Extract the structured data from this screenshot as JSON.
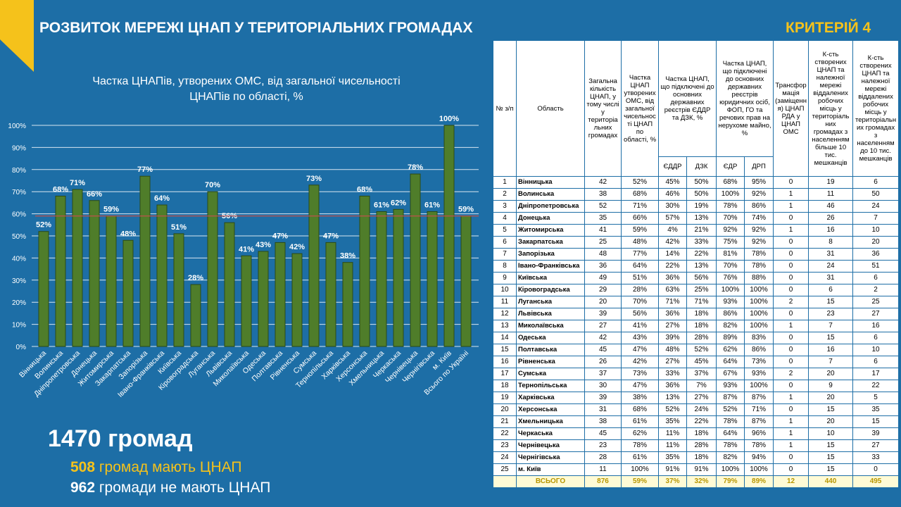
{
  "header": {
    "title": "РОЗВИТОК МЕРЕЖІ ЦНАП У ТЕРИТОРІАЛЬНИХ ГРОМАДАХ",
    "criterion": "КРИТЕРІЙ 4"
  },
  "chart_data": {
    "type": "bar",
    "title": [
      "Частка ЦНАПів, утворених ОМС, від загальної чисельності",
      "ЦНАПів по області, %"
    ],
    "categories": [
      "Вінницька",
      "Волинська",
      "Дніпропетровська",
      "Донецька",
      "Житомирська",
      "Закарпатська",
      "Запорізька",
      "Івано-Франківська",
      "Київська",
      "Кіровоградська",
      "Луганська",
      "Львівська",
      "Миколаївська",
      "Одеська",
      "Полтавська",
      "Рівненська",
      "Сумська",
      "Тернопільська",
      "Харківська",
      "Херсонська",
      "Хмельницька",
      "Черкаська",
      "Чернівецька",
      "Чернігівська",
      "м. Київ",
      "Всього по Україні"
    ],
    "values": [
      52,
      68,
      71,
      66,
      59,
      48,
      77,
      64,
      51,
      28,
      70,
      56,
      41,
      43,
      47,
      42,
      73,
      47,
      38,
      68,
      61,
      62,
      78,
      61,
      100,
      59
    ],
    "value_labels": [
      "52%",
      "68%",
      "71%",
      "66%",
      "59%",
      "48%",
      "77%",
      "64%",
      "51%",
      "28%",
      "70%",
      "56%",
      "41%",
      "43%",
      "47%",
      "42%",
      "73%",
      "47%",
      "38%",
      "68%",
      "61%",
      "62%",
      "78%",
      "61%",
      "100%",
      "59%"
    ],
    "color": "#4f7d2a",
    "reference_line": {
      "value": 59,
      "color": "#c0504d"
    },
    "ylim": [
      0,
      100
    ],
    "yticks": [
      {
        "value": 0,
        "label": "0%"
      },
      {
        "value": 10,
        "label": "10%"
      },
      {
        "value": 20,
        "label": "20%"
      },
      {
        "value": 30,
        "label": "30%"
      },
      {
        "value": 40,
        "label": "40%"
      },
      {
        "value": 50,
        "label": "50%"
      },
      {
        "value": 60,
        "label": "60%"
      },
      {
        "value": 70,
        "label": "70%"
      },
      {
        "value": 80,
        "label": "80%"
      },
      {
        "value": 90,
        "label": "90%"
      },
      {
        "value": 100,
        "label": "100%"
      }
    ],
    "grid": true
  },
  "summary": {
    "total": "1470 громад",
    "with_number": "508",
    "with_text": "громад мають ЦНАП",
    "without_number": "962",
    "without_text": "громади не мають ЦНАП"
  },
  "table": {
    "columns": [
      "№ з/п",
      "Область",
      "Загальна кількість ЦНАП, у тому числі у територіальних громадах",
      "Частка ЦНАП утворених ОМС, від загальної чисельності ЦНАП по області, %",
      "Частка ЦНАП, що підключені до основних державних реєстрів ЄДДР та ДЗК, %",
      "Частка ЦНАП, що підключені до основних державних реєстрів юридичних осіб, ФОП, ГО та речових прав на нерухоме майно, %",
      "Трансформація (заміщення) ЦНАП РДА у ЦНАП ОМС",
      "К-сть створених ЦНАП та належної мережі віддалених робочих місць у територіальних громадах з населенням більше 10 тис. мешканців",
      "К-сть створених ЦНАП та належної мережі віддалених робочих місць у територіальних громадах з населенням до 10 тис. мешканців"
    ],
    "subcolumns": [
      "ЄДДР",
      "ДЗК",
      "ЄДР",
      "ДРП"
    ],
    "rows": [
      [
        "1",
        "Вінницька",
        "42",
        "52%",
        "45%",
        "50%",
        "68%",
        "95%",
        "0",
        "19",
        "6"
      ],
      [
        "2",
        "Волинська",
        "38",
        "68%",
        "46%",
        "50%",
        "100%",
        "92%",
        "1",
        "11",
        "50"
      ],
      [
        "3",
        "Дніпропетровська",
        "52",
        "71%",
        "30%",
        "19%",
        "78%",
        "86%",
        "1",
        "46",
        "24"
      ],
      [
        "4",
        "Донецька",
        "35",
        "66%",
        "57%",
        "13%",
        "70%",
        "74%",
        "0",
        "26",
        "7"
      ],
      [
        "5",
        "Житомирська",
        "41",
        "59%",
        "4%",
        "21%",
        "92%",
        "92%",
        "1",
        "16",
        "10"
      ],
      [
        "6",
        "Закарпатська",
        "25",
        "48%",
        "42%",
        "33%",
        "75%",
        "92%",
        "0",
        "8",
        "20"
      ],
      [
        "7",
        "Запорізька",
        "48",
        "77%",
        "14%",
        "22%",
        "81%",
        "78%",
        "0",
        "31",
        "36"
      ],
      [
        "8",
        "Івано-Франківська",
        "36",
        "64%",
        "22%",
        "13%",
        "70%",
        "78%",
        "0",
        "24",
        "51"
      ],
      [
        "9",
        "Київська",
        "49",
        "51%",
        "36%",
        "56%",
        "76%",
        "88%",
        "0",
        "31",
        "6"
      ],
      [
        "10",
        "Кіровоградська",
        "29",
        "28%",
        "63%",
        "25%",
        "100%",
        "100%",
        "0",
        "6",
        "2"
      ],
      [
        "11",
        "Луганська",
        "20",
        "70%",
        "71%",
        "71%",
        "93%",
        "100%",
        "2",
        "15",
        "25"
      ],
      [
        "12",
        "Львівська",
        "39",
        "56%",
        "36%",
        "18%",
        "86%",
        "100%",
        "0",
        "23",
        "27"
      ],
      [
        "13",
        "Миколаївська",
        "27",
        "41%",
        "27%",
        "18%",
        "82%",
        "100%",
        "1",
        "7",
        "16"
      ],
      [
        "14",
        "Одеська",
        "42",
        "43%",
        "39%",
        "28%",
        "89%",
        "83%",
        "0",
        "15",
        "6"
      ],
      [
        "15",
        "Полтавська",
        "45",
        "47%",
        "48%",
        "52%",
        "62%",
        "86%",
        "0",
        "16",
        "10"
      ],
      [
        "16",
        "Рівненська",
        "26",
        "42%",
        "27%",
        "45%",
        "64%",
        "73%",
        "0",
        "7",
        "6"
      ],
      [
        "17",
        "Сумська",
        "37",
        "73%",
        "33%",
        "37%",
        "67%",
        "93%",
        "2",
        "20",
        "17"
      ],
      [
        "18",
        "Тернопільська",
        "30",
        "47%",
        "36%",
        "7%",
        "93%",
        "100%",
        "0",
        "9",
        "22"
      ],
      [
        "19",
        "Харківська",
        "39",
        "38%",
        "13%",
        "27%",
        "87%",
        "87%",
        "1",
        "20",
        "5"
      ],
      [
        "20",
        "Херсонська",
        "31",
        "68%",
        "52%",
        "24%",
        "52%",
        "71%",
        "0",
        "15",
        "35"
      ],
      [
        "21",
        "Хмельницька",
        "38",
        "61%",
        "35%",
        "22%",
        "78%",
        "87%",
        "1",
        "20",
        "15"
      ],
      [
        "22",
        "Черкаська",
        "45",
        "62%",
        "11%",
        "18%",
        "64%",
        "96%",
        "1",
        "10",
        "39"
      ],
      [
        "23",
        "Чернівецька",
        "23",
        "78%",
        "11%",
        "28%",
        "78%",
        "78%",
        "1",
        "15",
        "27"
      ],
      [
        "24",
        "Чернігівська",
        "28",
        "61%",
        "35%",
        "18%",
        "82%",
        "94%",
        "0",
        "15",
        "33"
      ],
      [
        "25",
        "м. Київ",
        "11",
        "100%",
        "91%",
        "91%",
        "100%",
        "100%",
        "0",
        "15",
        "0"
      ]
    ],
    "total": {
      "label": "ВСЬОГО",
      "values": [
        "876",
        "59%",
        "37%",
        "32%",
        "79%",
        "89%",
        "12",
        "440",
        "495"
      ]
    }
  }
}
